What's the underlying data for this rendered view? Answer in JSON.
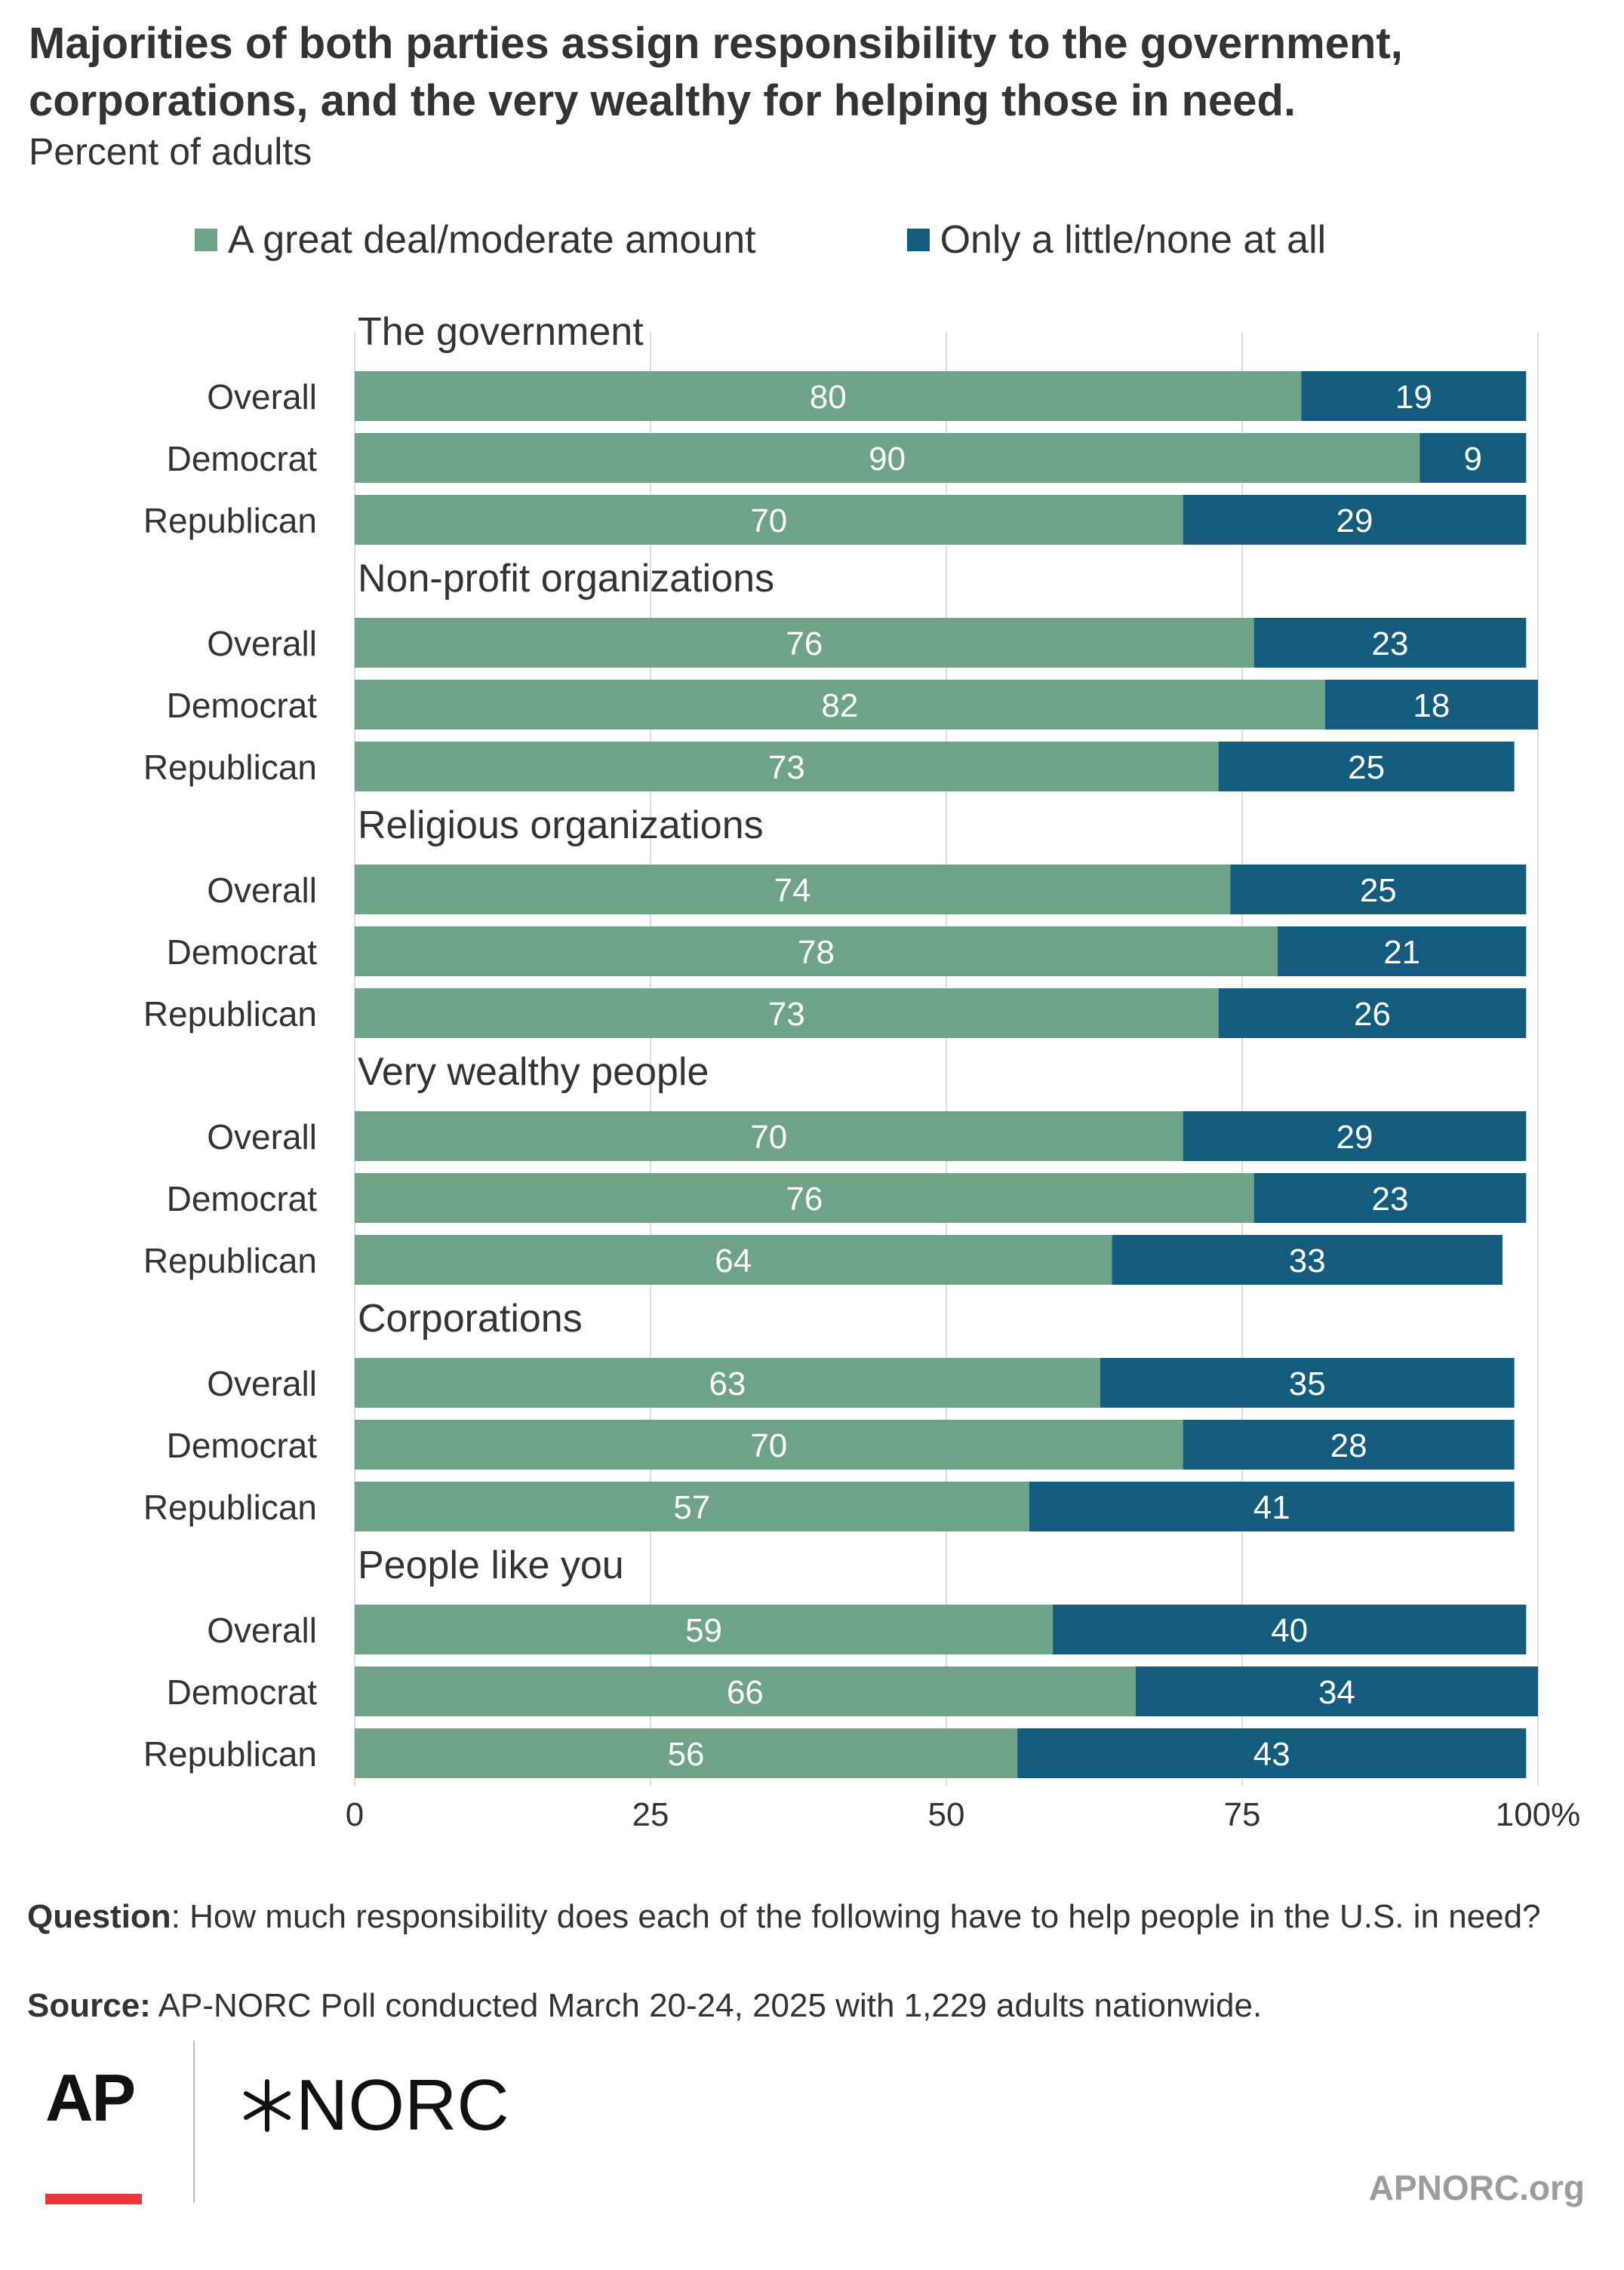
{
  "title": "Majorities of both parties assign responsibility to the government, corporations, and the very wealthy for helping those in need.",
  "subtitle": "Percent of adults",
  "legend": [
    {
      "label": "A great deal/moderate amount",
      "color": "#6fa387"
    },
    {
      "label": "Only a little/none at all",
      "color": "#145c7e"
    }
  ],
  "chart_data": {
    "type": "bar",
    "orientation": "horizontal",
    "stacked": true,
    "xlim": [
      0,
      100
    ],
    "x_ticks": [
      "0",
      "25",
      "50",
      "75",
      "100%"
    ],
    "grid": true,
    "groups": [
      {
        "name": "The government",
        "rows": [
          {
            "label": "Overall",
            "values": [
              80,
              19
            ]
          },
          {
            "label": "Democrat",
            "values": [
              90,
              9
            ]
          },
          {
            "label": "Republican",
            "values": [
              70,
              29
            ]
          }
        ]
      },
      {
        "name": "Non-profit organizations",
        "rows": [
          {
            "label": "Overall",
            "values": [
              76,
              23
            ]
          },
          {
            "label": "Democrat",
            "values": [
              82,
              18
            ]
          },
          {
            "label": "Republican",
            "values": [
              73,
              25
            ]
          }
        ]
      },
      {
        "name": "Religious organizations",
        "rows": [
          {
            "label": "Overall",
            "values": [
              74,
              25
            ]
          },
          {
            "label": "Democrat",
            "values": [
              78,
              21
            ]
          },
          {
            "label": "Republican",
            "values": [
              73,
              26
            ]
          }
        ]
      },
      {
        "name": "Very wealthy people",
        "rows": [
          {
            "label": "Overall",
            "values": [
              70,
              29
            ]
          },
          {
            "label": "Democrat",
            "values": [
              76,
              23
            ]
          },
          {
            "label": "Republican",
            "values": [
              64,
              33
            ]
          }
        ]
      },
      {
        "name": "Corporations",
        "rows": [
          {
            "label": "Overall",
            "values": [
              63,
              35
            ]
          },
          {
            "label": "Democrat",
            "values": [
              70,
              28
            ]
          },
          {
            "label": "Republican",
            "values": [
              57,
              41
            ]
          }
        ]
      },
      {
        "name": "People like you",
        "rows": [
          {
            "label": "Overall",
            "values": [
              59,
              40
            ]
          },
          {
            "label": "Democrat",
            "values": [
              66,
              34
            ]
          },
          {
            "label": "Republican",
            "values": [
              56,
              43
            ]
          }
        ]
      }
    ]
  },
  "footer": {
    "question_label": "Question",
    "question_text": ": How much responsibility does each of the following have to help people in the U.S. in need?",
    "source_label": "Source:",
    "source_text": " AP-NORC Poll conducted March 20-24, 2025 with 1,229 adults nationwide."
  },
  "logos": {
    "ap": "AP",
    "norc": "NORC",
    "site": "APNORC.org"
  }
}
